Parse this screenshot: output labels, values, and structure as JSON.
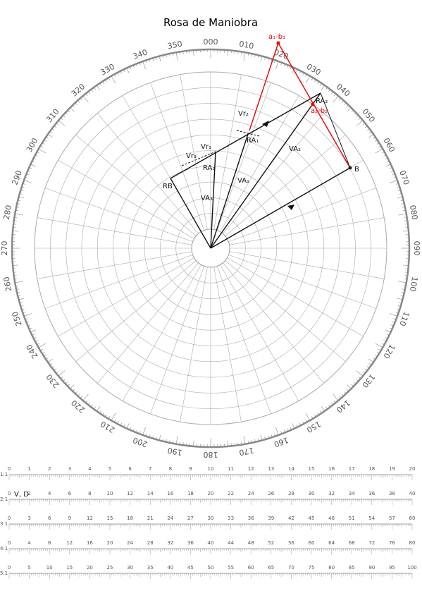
{
  "title": "Rosa de Maniobra",
  "bearings": [
    "000",
    "010",
    "020",
    "030",
    "040",
    "050",
    "060",
    "070",
    "080",
    "090",
    "100",
    "110",
    "120",
    "130",
    "140",
    "150",
    "160",
    "170",
    "180",
    "190",
    "200",
    "210",
    "220",
    "230",
    "240",
    "250",
    "260",
    "270",
    "280",
    "290",
    "300",
    "310",
    "320",
    "330",
    "340",
    "350"
  ],
  "plot_labels": {
    "vr2": "Vr₂",
    "vr1": "Vr₁",
    "vr3": "Vr₃",
    "ra1": "RA₁",
    "ra2": "RA₂",
    "ra3": "RA₃",
    "va1": "VA₁",
    "va2": "VA₂",
    "va3": "VA₃",
    "rb": "RB",
    "b": "B",
    "a1b1": "a₁-b₁",
    "a2b2": "a₂-b₂"
  },
  "scale_label": "V, D",
  "scales": [
    {
      "ratio": "1:1",
      "ticks": [
        0,
        1,
        2,
        3,
        4,
        5,
        6,
        7,
        8,
        9,
        10,
        11,
        12,
        13,
        14,
        15,
        16,
        17,
        18,
        19,
        20
      ]
    },
    {
      "ratio": "2:1",
      "ticks": [
        0,
        2,
        4,
        6,
        8,
        10,
        12,
        14,
        16,
        18,
        20,
        22,
        24,
        26,
        28,
        30,
        32,
        34,
        36,
        38,
        40
      ]
    },
    {
      "ratio": "3:1",
      "ticks": [
        0,
        3,
        6,
        9,
        12,
        15,
        18,
        21,
        24,
        27,
        30,
        33,
        36,
        39,
        42,
        45,
        48,
        51,
        54,
        57,
        60
      ]
    },
    {
      "ratio": "4:1",
      "ticks": [
        0,
        4,
        8,
        12,
        16,
        20,
        24,
        28,
        32,
        36,
        40,
        44,
        48,
        52,
        56,
        60,
        64,
        68,
        72,
        76,
        80
      ]
    },
    {
      "ratio": "5:1",
      "ticks": [
        0,
        5,
        10,
        15,
        20,
        25,
        30,
        35,
        40,
        45,
        50,
        55,
        60,
        65,
        70,
        75,
        80,
        85,
        90,
        95,
        100
      ]
    }
  ]
}
